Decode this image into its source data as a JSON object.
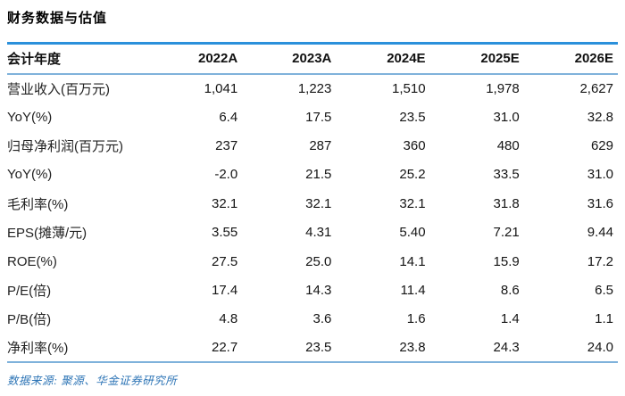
{
  "title": "财务数据与估值",
  "table": {
    "header": [
      "会计年度",
      "2022A",
      "2023A",
      "2024E",
      "2025E",
      "2026E"
    ],
    "rows": [
      {
        "label": "营业收入(百万元)",
        "values": [
          "1,041",
          "1,223",
          "1,510",
          "1,978",
          "2,627"
        ]
      },
      {
        "label": "YoY(%)",
        "values": [
          "6.4",
          "17.5",
          "23.5",
          "31.0",
          "32.8"
        ]
      },
      {
        "label": "归母净利润(百万元)",
        "values": [
          "237",
          "287",
          "360",
          "480",
          "629"
        ]
      },
      {
        "label": "YoY(%)",
        "values": [
          "-2.0",
          "21.5",
          "25.2",
          "33.5",
          "31.0"
        ]
      },
      {
        "label": "毛利率(%)",
        "values": [
          "32.1",
          "32.1",
          "32.1",
          "31.8",
          "31.6"
        ]
      },
      {
        "label": "EPS(摊薄/元)",
        "values": [
          "3.55",
          "4.31",
          "5.40",
          "7.21",
          "9.44"
        ]
      },
      {
        "label": "ROE(%)",
        "values": [
          "27.5",
          "25.0",
          "14.1",
          "15.9",
          "17.2"
        ]
      },
      {
        "label": "P/E(倍)",
        "values": [
          "17.4",
          "14.3",
          "11.4",
          "8.6",
          "6.5"
        ]
      },
      {
        "label": "P/B(倍)",
        "values": [
          "4.8",
          "3.6",
          "1.6",
          "1.4",
          "1.1"
        ]
      },
      {
        "label": "净利率(%)",
        "values": [
          "22.7",
          "23.5",
          "23.8",
          "24.3",
          "24.0"
        ]
      }
    ]
  },
  "footer": {
    "source_text": "数据来源: 聚源、华金证券研究所"
  },
  "colors": {
    "table_top_border": "#2b90db",
    "table_light_border": "#7fb2db",
    "footer_text": "#2e75b6",
    "body_text": "#1c1c1c"
  }
}
